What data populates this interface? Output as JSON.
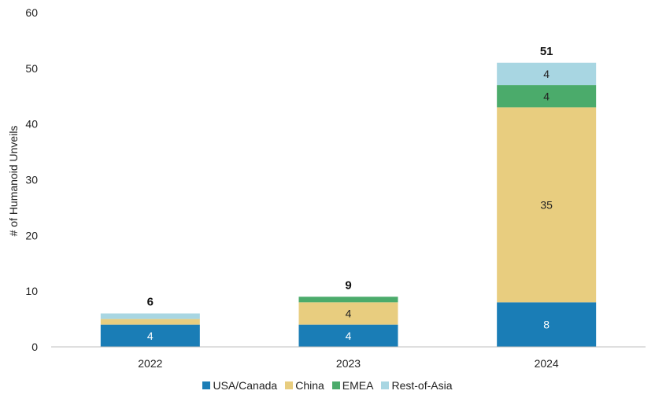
{
  "chart_data": {
    "type": "bar",
    "stacked": true,
    "categories": [
      "2022",
      "2023",
      "2024"
    ],
    "series": [
      {
        "name": "USA/Canada",
        "color": "#1a7db6",
        "values": [
          4,
          4,
          8
        ],
        "labels": [
          "4",
          "4",
          "8"
        ]
      },
      {
        "name": "China",
        "color": "#e8cd7f",
        "values": [
          1,
          4,
          35
        ],
        "labels": [
          "",
          "4",
          "35"
        ]
      },
      {
        "name": "EMEA",
        "color": "#4bab6b",
        "values": [
          0,
          1,
          4
        ],
        "labels": [
          "",
          "",
          "4"
        ]
      },
      {
        "name": "Rest-of-Asia",
        "color": "#a8d6e2",
        "values": [
          1,
          0,
          4
        ],
        "labels": [
          "",
          "",
          "4"
        ]
      }
    ],
    "totals": [
      "6",
      "9",
      "51"
    ],
    "ylabel": "# of Humanoid Unveils",
    "ylim": [
      0,
      60
    ],
    "yticks": [
      "0",
      "10",
      "20",
      "30",
      "40",
      "50",
      "60"
    ],
    "grid": false,
    "legend_position": "bottom"
  }
}
